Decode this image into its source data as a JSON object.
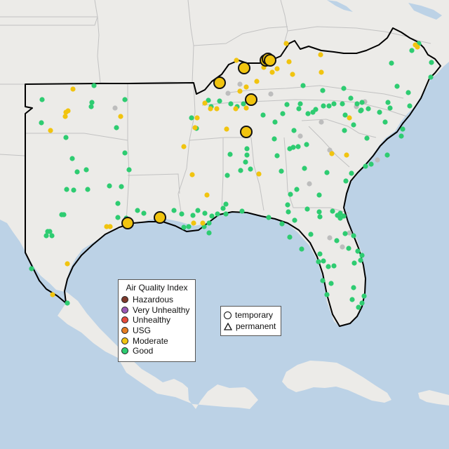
{
  "legend": {
    "title": "Air Quality Index",
    "categories": [
      {
        "label": "Hazardous",
        "color": "#7e3a2c"
      },
      {
        "label": "Very Unhealthy",
        "color": "#9b59b6"
      },
      {
        "label": "Unhealthy",
        "color": "#e74c3c"
      },
      {
        "label": "USG",
        "color": "#e67e22"
      },
      {
        "label": "Moderate",
        "color": "#f1c40f"
      },
      {
        "label": "Good",
        "color": "#2ecc71"
      }
    ]
  },
  "monitor_types": [
    {
      "label": "temporary",
      "icon": "circle-icon"
    },
    {
      "label": "permanent",
      "icon": "triangle-icon"
    }
  ],
  "colors": {
    "land": "#ecebe8",
    "water": "#bcd2e6",
    "state_border": "#c2c2c2",
    "region_border": "#000000",
    "no_data": "#bdbdbd"
  }
}
